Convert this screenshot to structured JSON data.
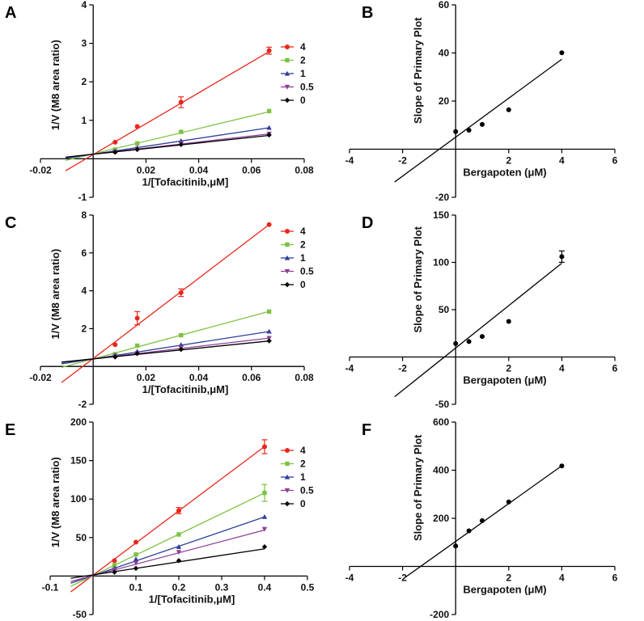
{
  "figure": {
    "description_title": "Lineweaver-Burk and secondary plots"
  },
  "chart_data": [
    {
      "id": "A",
      "type": "line",
      "panel_label": "A",
      "xlabel": "1/[Tofacitinib,μM]",
      "ylabel": "1/V (M8 area ratio)",
      "xlim": [
        -0.02,
        0.08
      ],
      "ylim": [
        -1,
        4
      ],
      "xticks": [
        -0.02,
        0,
        0.02,
        0.04,
        0.06,
        0.08
      ],
      "xtick_labels": [
        "-0.02",
        "",
        "0.02",
        "0.04",
        "0.06",
        "0.08"
      ],
      "yticks": [
        -1,
        0,
        1,
        2,
        3,
        4
      ],
      "ytick_labels": [
        "-1",
        "",
        "1",
        "2",
        "3",
        "4"
      ],
      "fit_range": [
        -0.0105,
        0.0667
      ],
      "x": [
        0.0083,
        0.0167,
        0.0333,
        0.0667
      ],
      "legend_position": "top-right",
      "series": [
        {
          "name": "4",
          "color": "#e8271c",
          "marker": "circle",
          "values": [
            0.43,
            0.84,
            1.47,
            2.81
          ],
          "errors": [
            0,
            0,
            0.14,
            0.09
          ],
          "slope": 40.1,
          "intercept": 0.11
        },
        {
          "name": "2",
          "color": "#7dc242",
          "marker": "square",
          "values": [
            0.24,
            0.4,
            0.7,
            1.24
          ],
          "errors": [
            0,
            0,
            0,
            0
          ],
          "slope": 16.4,
          "intercept": 0.13
        },
        {
          "name": "1",
          "color": "#2e3f97",
          "marker": "triangle-up",
          "values": [
            0.2,
            0.29,
            0.47,
            0.81
          ],
          "errors": [
            0,
            0,
            0,
            0
          ],
          "slope": 10.3,
          "intercept": 0.12
        },
        {
          "name": "0.5",
          "color": "#8e3f97",
          "marker": "triangle-down",
          "values": [
            0.18,
            0.26,
            0.4,
            0.65
          ],
          "errors": [
            0,
            0,
            0,
            0
          ],
          "slope": 7.9,
          "intercept": 0.12
        },
        {
          "name": "0",
          "color": "#000000",
          "marker": "diamond",
          "values": [
            0.17,
            0.24,
            0.37,
            0.62
          ],
          "errors": [
            0,
            0,
            0,
            0
          ],
          "slope": 7.3,
          "intercept": 0.12
        }
      ]
    },
    {
      "id": "B",
      "type": "scatter",
      "panel_label": "B",
      "xlabel": "Bergapoten (μM)",
      "ylabel": "Slope of Primary Plot",
      "xlim": [
        -4,
        6
      ],
      "ylim": [
        -20,
        60
      ],
      "xticks": [
        -4,
        -2,
        0,
        2,
        4,
        6
      ],
      "xtick_labels": [
        "-4",
        "-2",
        "",
        "2",
        "4",
        "6"
      ],
      "yticks": [
        -20,
        0,
        20,
        40,
        60
      ],
      "ytick_labels": [
        "-20",
        "",
        "20",
        "40",
        "60"
      ],
      "x": [
        0,
        0.5,
        1,
        2,
        4
      ],
      "values": [
        7.3,
        7.9,
        10.3,
        16.4,
        40.1
      ],
      "errors": [
        0,
        0,
        0,
        0,
        0
      ],
      "fit": {
        "slope": 8.1,
        "intercept": 5.0,
        "x_range": [
          -2.3,
          4
        ]
      }
    },
    {
      "id": "C",
      "type": "line",
      "panel_label": "C",
      "xlabel": "1/[Tofacitinib,μM]",
      "ylabel": "1/V (M8 area ratio)",
      "xlim": [
        -0.02,
        0.08
      ],
      "ylim": [
        -2,
        8
      ],
      "xticks": [
        -0.02,
        0,
        0.02,
        0.04,
        0.06,
        0.08
      ],
      "xtick_labels": [
        "-0.02",
        "",
        "0.02",
        "0.04",
        "0.06",
        "0.08"
      ],
      "yticks": [
        -2,
        0,
        2,
        4,
        6,
        8
      ],
      "ytick_labels": [
        "-2",
        "",
        "2",
        "4",
        "6",
        "8"
      ],
      "fit_range": [
        -0.012,
        0.0667
      ],
      "x": [
        0.0083,
        0.0167,
        0.0333,
        0.0667
      ],
      "legend_position": "top-right",
      "series": [
        {
          "name": "4",
          "color": "#e8271c",
          "marker": "circle",
          "values": [
            1.15,
            2.55,
            3.9,
            7.5
          ],
          "errors": [
            0,
            0.35,
            0.2,
            0
          ],
          "slope": 106.1,
          "intercept": 0.42
        },
        {
          "name": "2",
          "color": "#7dc242",
          "marker": "square",
          "values": [
            0.65,
            1.1,
            1.65,
            2.9
          ],
          "errors": [
            0,
            0,
            0,
            0
          ],
          "slope": 37.6,
          "intercept": 0.4
        },
        {
          "name": "1",
          "color": "#2e3f97",
          "marker": "triangle-up",
          "values": [
            0.6,
            0.8,
            1.15,
            1.85
          ],
          "errors": [
            0,
            0,
            0,
            0
          ],
          "slope": 21.7,
          "intercept": 0.4
        },
        {
          "name": "0.5",
          "color": "#8e3f97",
          "marker": "triangle-down",
          "values": [
            0.55,
            0.7,
            1.0,
            1.5
          ],
          "errors": [
            0,
            0,
            0,
            0
          ],
          "slope": 16.3,
          "intercept": 0.41
        },
        {
          "name": "0",
          "color": "#000000",
          "marker": "diamond",
          "values": [
            0.5,
            0.68,
            0.9,
            1.35
          ],
          "errors": [
            0,
            0,
            0,
            0
          ],
          "slope": 14.2,
          "intercept": 0.4
        }
      ]
    },
    {
      "id": "D",
      "type": "scatter",
      "panel_label": "D",
      "xlabel": "Bergapoten (μM)",
      "ylabel": "Slope of Primary Plot",
      "xlim": [
        -4,
        6
      ],
      "ylim": [
        -50,
        150
      ],
      "xticks": [
        -4,
        -2,
        0,
        2,
        4,
        6
      ],
      "xtick_labels": [
        "-4",
        "-2",
        "",
        "2",
        "4",
        "6"
      ],
      "yticks": [
        -50,
        0,
        50,
        100,
        150
      ],
      "ytick_labels": [
        "-50",
        "",
        "50",
        "100",
        "150"
      ],
      "x": [
        0,
        0.5,
        1,
        2,
        4
      ],
      "values": [
        14.2,
        16.3,
        21.7,
        37.6,
        106.1
      ],
      "errors": [
        0,
        0,
        0,
        0,
        6
      ],
      "fit": {
        "slope": 22.4,
        "intercept": 9.5,
        "x_range": [
          -2.3,
          4
        ]
      }
    },
    {
      "id": "E",
      "type": "line",
      "panel_label": "E",
      "xlabel": "1/[Tofacitinib,μM]",
      "ylabel": "1/V (M8 area ratio)",
      "xlim": [
        -0.1,
        0.5
      ],
      "ylim": [
        -50,
        200
      ],
      "xticks": [
        -0.1,
        0,
        0.1,
        0.2,
        0.3,
        0.4,
        0.5
      ],
      "xtick_labels": [
        "-0.1",
        "",
        "0.1",
        "0.2",
        "0.3",
        "0.4",
        "0.5"
      ],
      "yticks": [
        -50,
        0,
        50,
        100,
        150,
        200
      ],
      "ytick_labels": [
        "-50",
        "",
        "50",
        "100",
        "150",
        "200"
      ],
      "fit_range": [
        -0.052,
        0.4
      ],
      "x": [
        0.05,
        0.1,
        0.2,
        0.4
      ],
      "legend_position": "top-right",
      "series": [
        {
          "name": "4",
          "color": "#e8271c",
          "marker": "circle",
          "values": [
            20,
            44,
            85,
            168
          ],
          "errors": [
            0,
            0,
            4,
            9
          ],
          "slope": 417.6,
          "intercept": 1.2
        },
        {
          "name": "2",
          "color": "#7dc242",
          "marker": "square",
          "values": [
            14,
            28,
            54,
            108
          ],
          "errors": [
            0,
            0,
            0,
            11
          ],
          "slope": 268.2,
          "intercept": 0.6
        },
        {
          "name": "1",
          "color": "#2e3f97",
          "marker": "triangle-up",
          "values": [
            10,
            22,
            38,
            77
          ],
          "errors": [
            0,
            0,
            0,
            0
          ],
          "slope": 190.5,
          "intercept": 0.6
        },
        {
          "name": "0.5",
          "color": "#8e3f97",
          "marker": "triangle-down",
          "values": [
            8,
            17,
            31,
            61
          ],
          "errors": [
            0,
            0,
            0,
            0
          ],
          "slope": 148.0,
          "intercept": 0.6
        },
        {
          "name": "0",
          "color": "#000000",
          "marker": "diamond",
          "values": [
            5,
            10,
            20,
            38
          ],
          "errors": [
            0,
            0,
            0,
            0
          ],
          "slope": 84.7,
          "intercept": 1.5
        }
      ]
    },
    {
      "id": "F",
      "type": "scatter",
      "panel_label": "F",
      "xlabel": "Bergapoten (μM)",
      "ylabel": "Slope of Primary Plot",
      "xlim": [
        -4,
        6
      ],
      "ylim": [
        -200,
        600
      ],
      "xticks": [
        -4,
        -2,
        0,
        2,
        4,
        6
      ],
      "xtick_labels": [
        "-4",
        "-2",
        "",
        "2",
        "4",
        "6"
      ],
      "yticks": [
        -200,
        0,
        200,
        400,
        600
      ],
      "ytick_labels": [
        "-200",
        "",
        "200",
        "400",
        "600"
      ],
      "x": [
        0,
        0.5,
        1,
        2,
        4
      ],
      "values": [
        84.7,
        148.0,
        190.5,
        268.2,
        417.6
      ],
      "errors": [
        0,
        0,
        0,
        0,
        0
      ],
      "fit": {
        "slope": 78.6,
        "intercept": 104,
        "x_range": [
          -1.9,
          4
        ]
      }
    }
  ]
}
